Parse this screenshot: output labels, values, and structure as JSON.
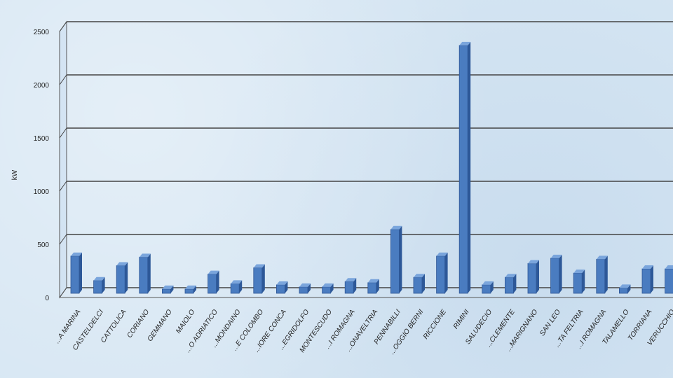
{
  "chart_data": {
    "type": "bar",
    "title": "",
    "xlabel": "",
    "ylabel": "kW",
    "ylim": [
      0,
      2500
    ],
    "yticks": [
      "0",
      "500",
      "1000",
      "1500",
      "2000",
      "2500"
    ],
    "grid": true,
    "categories": [
      "...A MARINA",
      "CASTELDELCI",
      "CATTOLICA",
      "CORIANO",
      "GEMMANO",
      "MAIOLO",
      "...O ADRIATICO",
      "...MONDAINO",
      "...E COLOMBO",
      "...IORE CONCA",
      "...EGRIDOLFO",
      "MONTESCUDO",
      "...I ROMAGNA",
      "...ONAVELTRIA",
      "PENNABILLI",
      "...OGGIO BERNI",
      "RICCIONE",
      "RIMINI",
      "SALUDECIO",
      "...CLEMENTE",
      "...MARIGNANO",
      "SAN LEO",
      "...TA FELTRIA",
      "...I ROMAGNA",
      "TALAMELLO",
      "TORRIANA",
      "VERUCCHIO"
    ],
    "values": [
      350,
      120,
      260,
      340,
      40,
      40,
      180,
      90,
      240,
      80,
      60,
      60,
      110,
      100,
      600,
      150,
      350,
      2330,
      80,
      150,
      280,
      330,
      190,
      320,
      50,
      230,
      230
    ],
    "bar_color": "#4a7cc0"
  }
}
